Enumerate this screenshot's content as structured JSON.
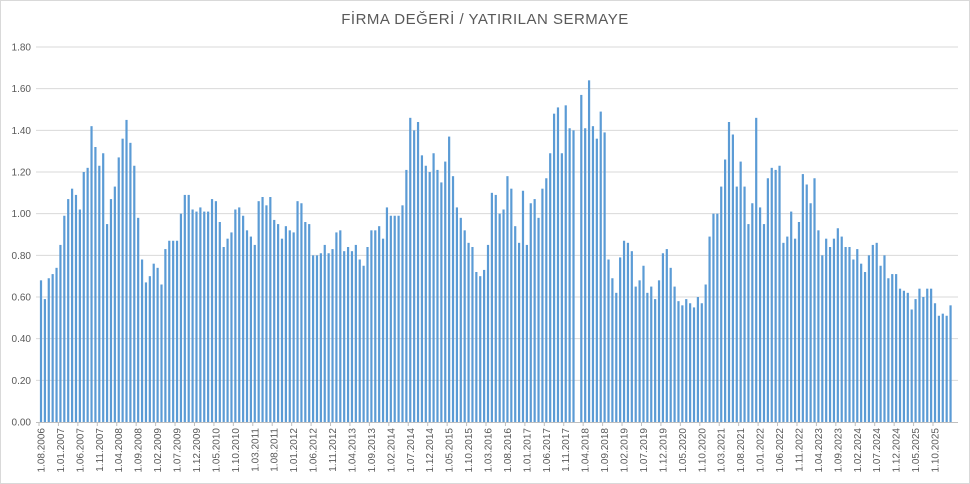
{
  "chart_data": {
    "type": "bar",
    "title": "FİRMA DEĞERİ / YATIRILAN SERMAYE",
    "xlabel": "",
    "ylabel": "",
    "ylim": [
      0,
      1.8
    ],
    "y_ticks": [
      "0.00",
      "0.20",
      "0.40",
      "0.60",
      "0.80",
      "1.00",
      "1.20",
      "1.40",
      "1.60",
      "1.80"
    ],
    "y_tick_values": [
      0,
      0.2,
      0.4,
      0.6,
      0.8,
      1.0,
      1.2,
      1.4,
      1.6,
      1.8
    ],
    "grid": true,
    "legend": "none",
    "bar_color": "#5b9bd5",
    "x_start": "1.08.2006",
    "x_interval": "monthly",
    "x_tick_every": 5,
    "x_tick_labels": [
      "1.08.2006",
      "1.01.2007",
      "1.06.2007",
      "1.11.2007",
      "1.04.2008",
      "1.09.2008",
      "1.02.2009",
      "1.07.2009",
      "1.12.2009",
      "1.05.2010",
      "1.10.2010",
      "1.03.2011",
      "1.08.2011",
      "1.01.2012",
      "1.06.2012",
      "1.11.2012",
      "1.04.2013",
      "1.09.2013",
      "1.02.2014",
      "1.07.2014",
      "1.12.2014",
      "1.05.2015",
      "1.10.2015",
      "1.03.2016",
      "1.08.2016",
      "1.01.2017",
      "1.06.2017",
      "1.11.2017",
      "1.04.2018",
      "1.09.2018",
      "1.02.2019",
      "1.07.2019",
      "1.12.2019",
      "1.05.2020",
      "1.10.2020",
      "1.03.2021",
      "1.08.2021",
      "1.01.2022",
      "1.06.2022",
      "1.11.2022",
      "1.04.2023",
      "1.09.2023",
      "1.02.2024",
      "1.07.2024",
      "1.12.2024",
      "1.05.2025",
      "1.10.2025"
    ],
    "values": [
      0.68,
      0.59,
      0.69,
      0.71,
      0.74,
      0.85,
      0.99,
      1.07,
      1.12,
      1.09,
      1.02,
      1.2,
      1.22,
      1.42,
      1.32,
      1.23,
      1.29,
      0.95,
      1.07,
      1.13,
      1.27,
      1.36,
      1.45,
      1.34,
      1.23,
      0.98,
      0.78,
      0.67,
      0.7,
      0.76,
      0.74,
      0.66,
      0.83,
      0.87,
      0.87,
      0.87,
      1.0,
      1.09,
      1.09,
      1.02,
      1.01,
      1.03,
      1.01,
      1.01,
      1.07,
      1.06,
      0.96,
      0.84,
      0.88,
      0.91,
      1.02,
      1.03,
      0.99,
      0.92,
      0.89,
      0.85,
      1.06,
      1.08,
      1.04,
      1.08,
      0.97,
      0.95,
      0.88,
      0.94,
      0.92,
      0.91,
      1.06,
      1.05,
      0.96,
      0.95,
      0.8,
      0.8,
      0.81,
      0.85,
      0.81,
      0.83,
      0.91,
      0.92,
      0.82,
      0.84,
      0.82,
      0.85,
      0.78,
      0.75,
      0.84,
      0.92,
      0.92,
      0.94,
      0.88,
      1.03,
      0.99,
      0.99,
      0.99,
      1.04,
      1.21,
      1.46,
      1.4,
      1.44,
      1.28,
      1.23,
      1.2,
      1.29,
      1.21,
      1.15,
      1.25,
      1.37,
      1.18,
      1.03,
      0.98,
      0.92,
      0.86,
      0.84,
      0.72,
      0.7,
      0.73,
      0.85,
      1.1,
      1.09,
      1.0,
      1.02,
      1.18,
      1.12,
      0.94,
      0.86,
      1.11,
      0.85,
      1.05,
      1.07,
      0.98,
      1.12,
      1.17,
      1.29,
      1.48,
      1.51,
      1.29,
      1.52,
      1.41,
      1.4,
      null,
      1.57,
      1.41,
      1.64,
      1.42,
      1.36,
      1.49,
      1.39,
      0.78,
      0.69,
      0.62,
      0.79,
      0.87,
      0.86,
      0.82,
      0.65,
      0.68,
      0.75,
      0.62,
      0.65,
      0.59,
      0.68,
      0.81,
      0.83,
      0.74,
      0.65,
      0.58,
      0.56,
      0.59,
      0.57,
      0.55,
      0.6,
      0.57,
      0.66,
      0.89,
      1.0,
      1.0,
      1.13,
      1.26,
      1.44,
      1.38,
      1.13,
      1.25,
      1.13,
      0.95,
      1.05,
      1.46,
      1.03,
      0.95,
      1.17,
      1.22,
      1.21,
      1.23,
      0.86,
      0.89,
      1.01,
      0.88,
      0.96,
      1.19,
      1.14,
      1.05,
      1.17,
      0.92,
      0.8,
      0.88,
      0.84,
      0.88,
      0.93,
      0.89,
      0.84,
      0.84,
      0.78,
      0.83,
      0.76,
      0.72,
      0.8,
      0.85,
      0.86,
      0.75,
      0.8,
      0.69,
      0.71,
      0.71,
      0.64,
      0.63,
      0.62,
      0.54,
      0.59,
      0.64,
      0.6,
      0.64,
      0.64,
      0.57,
      0.51,
      0.52,
      0.51,
      0.56
    ]
  }
}
